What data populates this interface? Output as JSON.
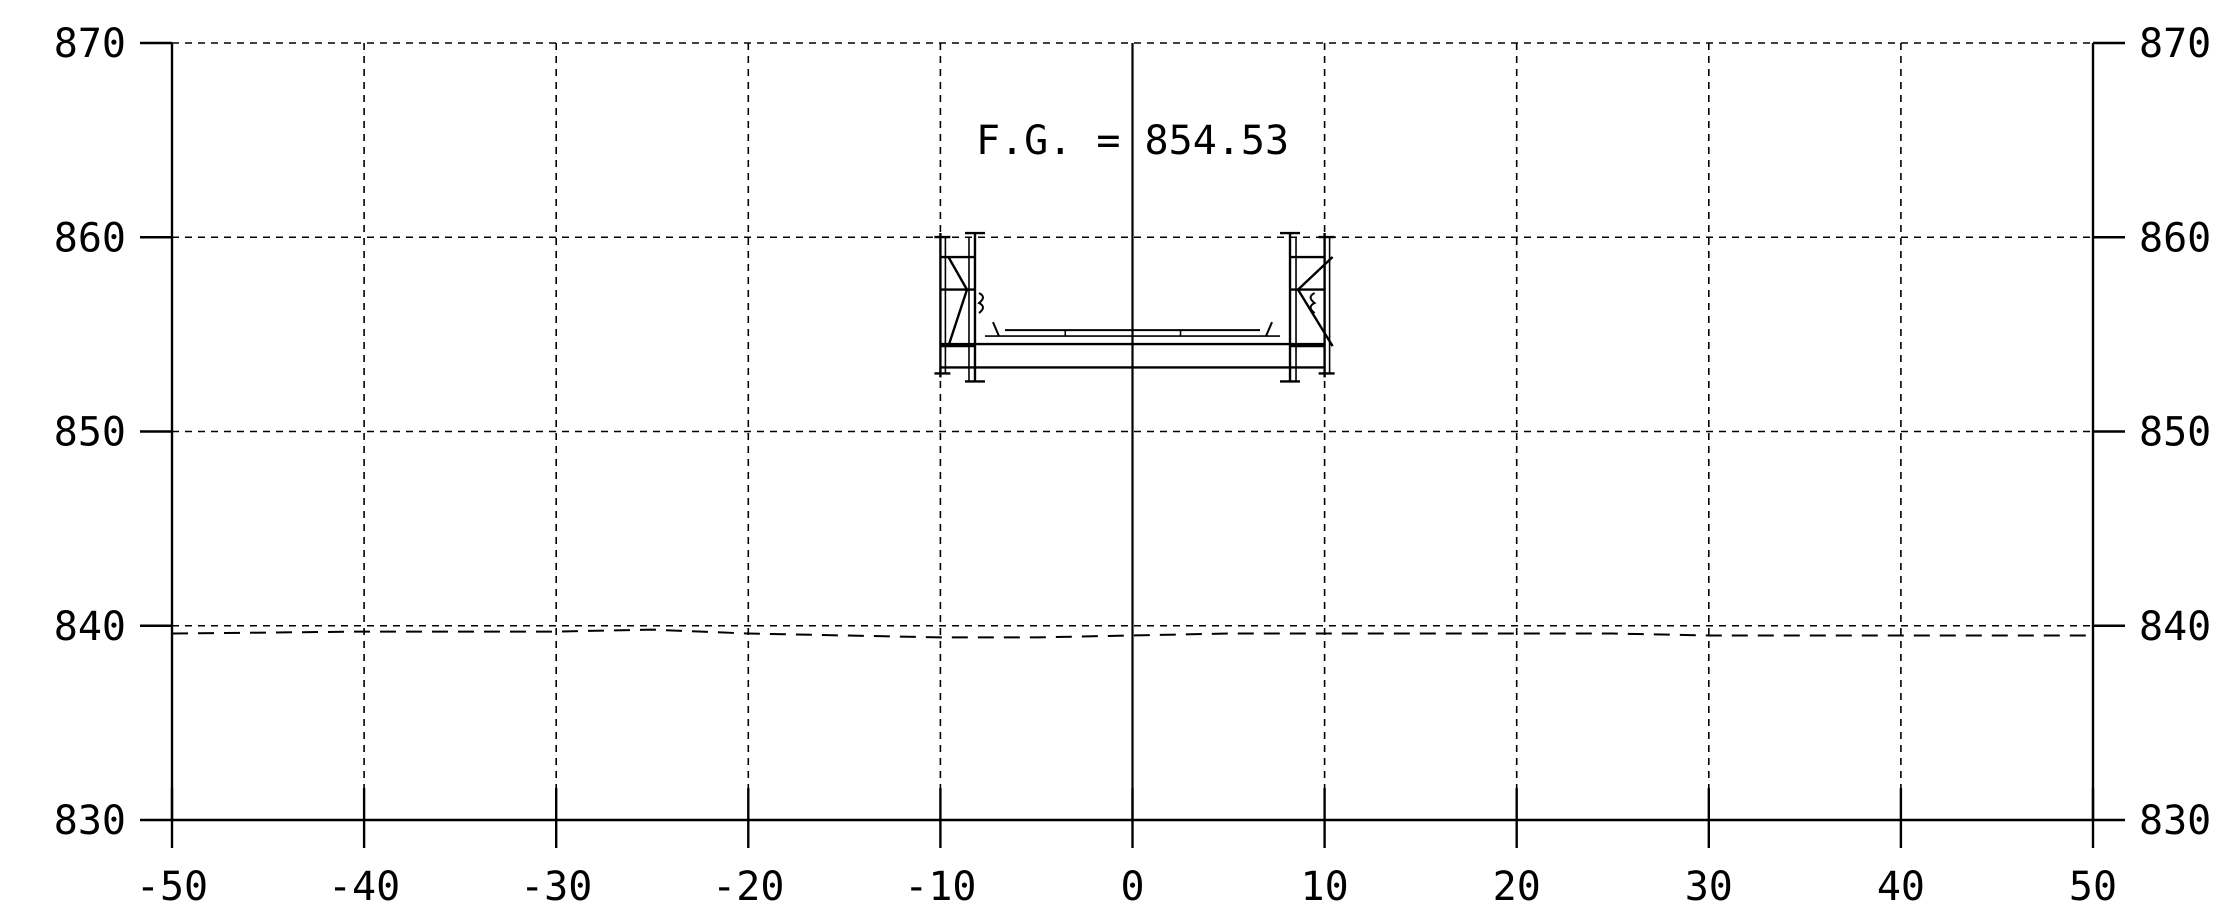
{
  "chart_data": {
    "type": "line",
    "title": "",
    "xlabel": "",
    "ylabel": "",
    "xlim": [
      -50,
      50
    ],
    "ylim": [
      830,
      870
    ],
    "x_ticks": [
      -50,
      -40,
      -30,
      -20,
      -10,
      0,
      10,
      20,
      30,
      40,
      50
    ],
    "x_tick_labels": [
      "-50",
      "-40",
      "-30",
      "-20",
      "-10",
      "0",
      "10",
      "20",
      "30",
      "40",
      "50"
    ],
    "y_ticks": [
      830,
      840,
      850,
      860,
      870
    ],
    "y_tick_labels": [
      "830",
      "840",
      "850",
      "860",
      "870"
    ],
    "grid": true,
    "annotation": {
      "text": "F.G. = 854.53",
      "x": 0,
      "y": 865
    },
    "series": [
      {
        "style": "dashed",
        "x": [
          -50,
          -40,
          -30,
          -25,
          -20,
          -15,
          -10,
          -5,
          0,
          5,
          10,
          15,
          20,
          25,
          30,
          40,
          50
        ],
        "y": [
          839.6,
          839.7,
          839.7,
          839.8,
          839.6,
          839.5,
          839.4,
          839.4,
          839.5,
          839.6,
          839.6,
          839.6,
          839.6,
          839.6,
          839.5,
          839.5,
          839.5
        ]
      }
    ],
    "structure": {
      "name": "bridge-cross-section",
      "x_range": [
        -10,
        10
      ],
      "top_elevation": 859.6,
      "deck_elevation": 854.5,
      "bottom_elevation": 853.3
    }
  }
}
